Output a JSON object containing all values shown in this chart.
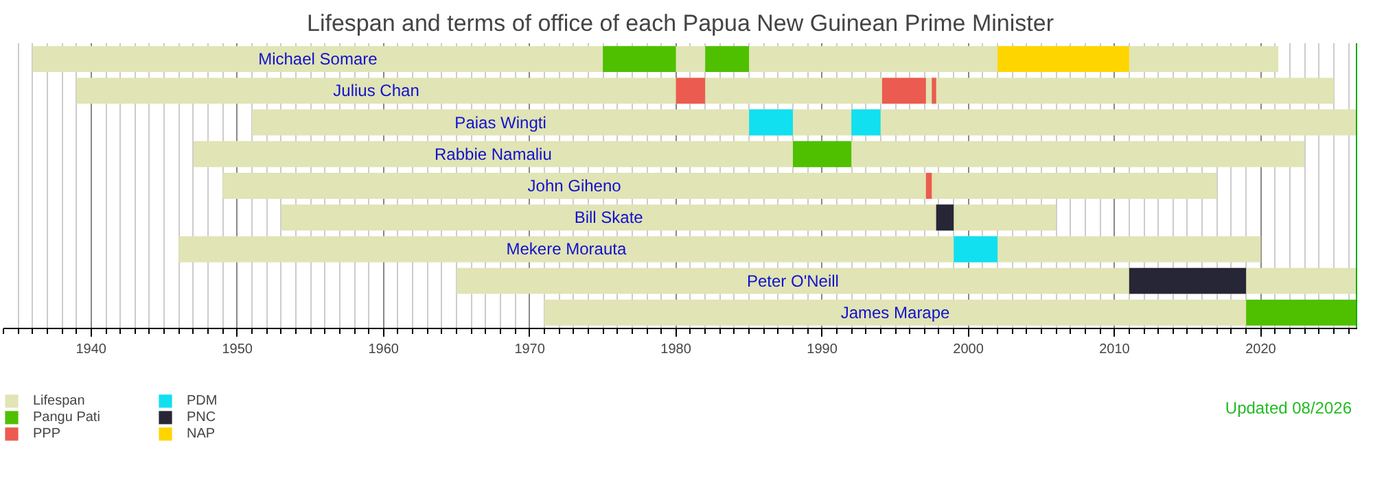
{
  "chart_data": {
    "type": "bar",
    "orientation": "horizontal",
    "title": "Lifespan and terms of office of each Papua New Guinean Prime Minister",
    "categories": [
      "Michael Somare",
      "Julius Chan",
      "Paias Wingti",
      "Rabbie Namaliu",
      "John Giheno",
      "Bill Skate",
      "Mekere Morauta",
      "Peter O'Neill",
      "James Marape"
    ],
    "series": [
      {
        "name": "Lifespan",
        "color": "#e1e4b4",
        "base": [
          1936,
          1939,
          1951,
          1947,
          1949,
          1953,
          1946,
          1965,
          1971
        ],
        "values": [
          85.2,
          86,
          75.6,
          76,
          68,
          53,
          74,
          61.6,
          55.6
        ]
      },
      {
        "name": "Pangu Pati",
        "color": "#4fc000",
        "base": [
          1975,
          null,
          null,
          1988,
          null,
          null,
          null,
          null,
          2019
        ],
        "values": [
          5,
          null,
          null,
          4,
          null,
          null,
          null,
          null,
          7.6
        ]
      },
      {
        "color": "#4fc000",
        "base": [
          1982,
          null,
          null,
          null,
          null,
          null,
          null,
          null,
          null
        ],
        "values": [
          3,
          null,
          null,
          null,
          null,
          null,
          null,
          null,
          null
        ]
      },
      {
        "name": "PPP",
        "color": "#ec5b4f",
        "base": [
          null,
          1980,
          null,
          null,
          1997.1,
          null,
          null,
          null,
          null
        ],
        "values": [
          null,
          2,
          null,
          null,
          0.4,
          null,
          null,
          null,
          null
        ]
      },
      {
        "color": "#ec5b4f",
        "base": [
          null,
          1994.1,
          null,
          null,
          null,
          null,
          null,
          null,
          null
        ],
        "values": [
          null,
          3,
          null,
          null,
          null,
          null,
          null,
          null,
          null
        ]
      },
      {
        "color": "#ec5b4f",
        "base": [
          null,
          1997.5,
          null,
          null,
          null,
          null,
          null,
          null,
          null
        ],
        "values": [
          null,
          0.3,
          null,
          null,
          null,
          null,
          null,
          null,
          null
        ]
      },
      {
        "name": "PDM",
        "color": "#10e0f0",
        "base": [
          null,
          null,
          1985,
          null,
          null,
          null,
          1999,
          null,
          null
        ],
        "values": [
          null,
          null,
          3,
          null,
          null,
          null,
          3,
          null,
          null
        ]
      },
      {
        "color": "#10e0f0",
        "base": [
          null,
          null,
          1992,
          null,
          null,
          null,
          null,
          null,
          null
        ],
        "values": [
          null,
          null,
          2,
          null,
          null,
          null,
          null,
          null,
          null
        ]
      },
      {
        "name": "PNC",
        "color": "#272636",
        "base": [
          null,
          null,
          null,
          null,
          null,
          1997.8,
          null,
          2011,
          null
        ],
        "values": [
          null,
          null,
          null,
          null,
          null,
          1.2,
          null,
          8,
          null
        ]
      },
      {
        "name": "NAP",
        "color": "#ffd500",
        "base": [
          2002,
          null,
          null,
          null,
          null,
          null,
          null,
          null,
          null
        ],
        "values": [
          9,
          null,
          null,
          null,
          null,
          null,
          null,
          null,
          null
        ]
      }
    ],
    "xlim": [
      1934,
      2026.6
    ],
    "xticks": [
      {
        "value": 1934,
        "label": null
      },
      {
        "value": 1935,
        "label": null
      },
      {
        "value": 1936,
        "label": null
      },
      {
        "value": 1937,
        "label": null
      },
      {
        "value": 1938,
        "label": null
      },
      {
        "value": 1939,
        "label": null
      },
      1940,
      {
        "value": 1941,
        "label": null
      },
      {
        "value": 1942,
        "label": null
      },
      {
        "value": 1943,
        "label": null
      },
      {
        "value": 1944,
        "label": null
      },
      {
        "value": 1945,
        "label": null
      },
      {
        "value": 1946,
        "label": null
      },
      {
        "value": 1947,
        "label": null
      },
      {
        "value": 1948,
        "label": null
      },
      {
        "value": 1949,
        "label": null
      },
      1950,
      {
        "value": 1951,
        "label": null
      },
      {
        "value": 1952,
        "label": null
      },
      {
        "value": 1953,
        "label": null
      },
      {
        "value": 1954,
        "label": null
      },
      {
        "value": 1955,
        "label": null
      },
      {
        "value": 1956,
        "label": null
      },
      {
        "value": 1957,
        "label": null
      },
      {
        "value": 1958,
        "label": null
      },
      {
        "value": 1959,
        "label": null
      },
      1960,
      {
        "value": 1961,
        "label": null
      },
      {
        "value": 1962,
        "label": null
      },
      {
        "value": 1963,
        "label": null
      },
      {
        "value": 1964,
        "label": null
      },
      {
        "value": 1965,
        "label": null
      },
      {
        "value": 1966,
        "label": null
      },
      {
        "value": 1967,
        "label": null
      },
      {
        "value": 1968,
        "label": null
      },
      {
        "value": 1969,
        "label": null
      },
      1970,
      {
        "value": 1971,
        "label": null
      },
      {
        "value": 1972,
        "label": null
      },
      {
        "value": 1973,
        "label": null
      },
      {
        "value": 1974,
        "label": null
      },
      {
        "value": 1975,
        "label": null
      },
      {
        "value": 1976,
        "label": null
      },
      {
        "value": 1977,
        "label": null
      },
      {
        "value": 1978,
        "label": null
      },
      {
        "value": 1979,
        "label": null
      },
      1980,
      {
        "value": 1981,
        "label": null
      },
      {
        "value": 1982,
        "label": null
      },
      {
        "value": 1983,
        "label": null
      },
      {
        "value": 1984,
        "label": null
      },
      {
        "value": 1985,
        "label": null
      },
      {
        "value": 1986,
        "label": null
      },
      {
        "value": 1987,
        "label": null
      },
      {
        "value": 1988,
        "label": null
      },
      {
        "value": 1989,
        "label": null
      },
      1990,
      {
        "value": 1991,
        "label": null
      },
      {
        "value": 1992,
        "label": null
      },
      {
        "value": 1993,
        "label": null
      },
      {
        "value": 1994,
        "label": null
      },
      {
        "value": 1995,
        "label": null
      },
      {
        "value": 1996,
        "label": null
      },
      {
        "value": 1997,
        "label": null
      },
      {
        "value": 1998,
        "label": null
      },
      {
        "value": 1999,
        "label": null
      },
      2000,
      {
        "value": 2001,
        "label": null
      },
      {
        "value": 2002,
        "label": null
      },
      {
        "value": 2003,
        "label": null
      },
      {
        "value": 2004,
        "label": null
      },
      {
        "value": 2005,
        "label": null
      },
      {
        "value": 2006,
        "label": null
      },
      {
        "value": 2007,
        "label": null
      },
      {
        "value": 2008,
        "label": null
      },
      {
        "value": 2009,
        "label": null
      },
      2010,
      {
        "value": 2011,
        "label": null
      },
      {
        "value": 2012,
        "label": null
      },
      {
        "value": 2013,
        "label": null
      },
      {
        "value": 2014,
        "label": null
      },
      {
        "value": 2015,
        "label": null
      },
      {
        "value": 2016,
        "label": null
      },
      {
        "value": 2017,
        "label": null
      },
      {
        "value": 2018,
        "label": null
      },
      {
        "value": 2019,
        "label": null
      },
      2020,
      {
        "value": 2021,
        "label": null
      },
      {
        "value": 2022,
        "label": null
      },
      {
        "value": 2023,
        "label": null
      },
      {
        "value": 2024,
        "label": null
      },
      {
        "value": 2025,
        "label": null
      },
      {
        "value": 2026,
        "label": null
      }
    ],
    "ref_lines": [
      {
        "axis": "x",
        "value": 2026.6,
        "color": "#00aa00"
      }
    ],
    "grid": "x",
    "legend": "bottom left",
    "tick_labels": "x",
    "annotations": [
      "Updated 08/2026"
    ]
  }
}
